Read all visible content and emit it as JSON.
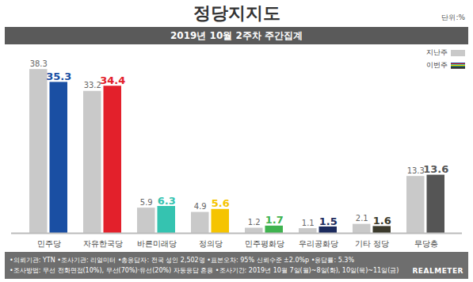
{
  "chart_data": {
    "type": "bar",
    "title": "정당지지도",
    "subtitle": "2019년 10월 2주차 주간집계",
    "unit": "단위:%",
    "categories": [
      "민주당",
      "자유한국당",
      "바른미래당",
      "정의당",
      "민주평화당",
      "우리공화당",
      "기타 정당",
      "무당층"
    ],
    "series": [
      {
        "name": "지난주",
        "color": "#c9c9c9",
        "values": [
          38.3,
          33.2,
          5.9,
          4.9,
          1.2,
          1.1,
          2.1,
          13.3
        ]
      },
      {
        "name": "이번주",
        "colors": [
          "#1a4fa3",
          "#e3202b",
          "#35c3b0",
          "#f5c400",
          "#3fb34f",
          "#1c2b5e",
          "#3b3a2c",
          "#555555"
        ],
        "values": [
          35.3,
          34.4,
          6.3,
          5.6,
          1.7,
          1.5,
          1.6,
          13.6
        ]
      }
    ],
    "ylim": [
      0,
      40
    ],
    "data_labels": true,
    "tick_labels": "x",
    "legend": "top-right",
    "notes": [
      "•의뢰기관: YTN •조사기관: 리얼미터 •총응답자: 전국 성인 2,502명 •표본오차: 95% 신뢰수준 ±2.0%p •응답률: 5.3%",
      "•조사방법: 무선 전화면접(10%), 무선(70%)·유선(20%) 자동응답 혼용 •조사기간: 2019년 10월 7일(월)~8일(화), 10일(목)~11일(금)"
    ],
    "source": "REALMETER"
  }
}
